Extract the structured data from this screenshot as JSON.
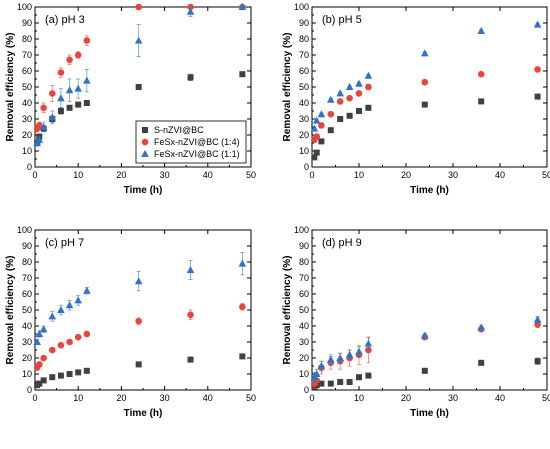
{
  "legend": {
    "entries": [
      {
        "label": "S-nZVI@BC",
        "marker": "square",
        "color": "#404040"
      },
      {
        "label": "FeSx-nZVI@BC (1:4)",
        "marker": "circle",
        "color": "#e8453c"
      },
      {
        "label": "FeSx-nZVI@BC (1:1)",
        "marker": "triangle",
        "color": "#2f72c8"
      }
    ]
  },
  "chart_data": [
    {
      "type": "scatter",
      "title": "(a) pH 3",
      "xlabel": "Time (h)",
      "ylabel": "Removal efficiency (%)",
      "xlim": [
        0,
        50
      ],
      "ylim": [
        0,
        100
      ],
      "xticks": [
        "0",
        "10",
        "20",
        "30",
        "40",
        "50"
      ],
      "yticks": [
        "0",
        "10",
        "20",
        "30",
        "40",
        "50",
        "60",
        "70",
        "80",
        "90",
        "100"
      ],
      "legend_position": "bottom-right",
      "series": [
        {
          "name": "S-nZVI@BC",
          "marker": "square",
          "color": "#404040",
          "x": [
            0.5,
            1,
            2,
            4,
            6,
            8,
            10,
            12,
            24,
            36,
            48
          ],
          "y": [
            15,
            19,
            24,
            30,
            35,
            37,
            39,
            40,
            50,
            56,
            58
          ],
          "err": [
            1,
            1.5,
            1.5,
            2,
            2,
            1.5,
            1.5,
            1.5,
            1.5,
            2,
            1
          ]
        },
        {
          "name": "FeSx-nZVI@BC (1:4)",
          "marker": "circle",
          "color": "#e8453c",
          "x": [
            0.5,
            1,
            2,
            4,
            6,
            8,
            10,
            12,
            24,
            36,
            48
          ],
          "y": [
            24,
            26,
            37,
            46,
            59,
            67,
            70,
            79,
            100,
            100,
            100
          ],
          "err": [
            2,
            2,
            3,
            5,
            3,
            3,
            2,
            3,
            1,
            1,
            1
          ]
        },
        {
          "name": "FeSx-nZVI@BC (1:1)",
          "marker": "triangle",
          "color": "#2f72c8",
          "x": [
            0.5,
            1,
            2,
            4,
            6,
            8,
            10,
            12,
            24,
            36,
            48
          ],
          "y": [
            15,
            17,
            25,
            31,
            43,
            48,
            49,
            54,
            79,
            97,
            100
          ],
          "err": [
            2,
            2,
            3,
            4,
            6,
            7,
            6,
            7,
            10,
            3,
            1
          ]
        }
      ]
    },
    {
      "type": "scatter",
      "title": "(b) pH 5",
      "xlabel": "Time (h)",
      "ylabel": "Removal efficiency (%)",
      "xlim": [
        0,
        50
      ],
      "ylim": [
        0,
        100
      ],
      "xticks": [
        "0",
        "10",
        "20",
        "30",
        "40",
        "50"
      ],
      "yticks": [
        "0",
        "10",
        "20",
        "30",
        "40",
        "50",
        "60",
        "70",
        "80",
        "90",
        "100"
      ],
      "series": [
        {
          "name": "S-nZVI@BC",
          "marker": "square",
          "color": "#404040",
          "x": [
            0.5,
            1,
            2,
            4,
            6,
            8,
            10,
            12,
            24,
            36,
            48
          ],
          "y": [
            6,
            9,
            16,
            23,
            30,
            32,
            35,
            37,
            39,
            41,
            44
          ],
          "err": [
            1,
            1,
            1,
            1.5,
            1.5,
            1,
            1,
            1,
            1,
            1.5,
            1.5
          ]
        },
        {
          "name": "FeSx-nZVI@BC (1:4)",
          "marker": "circle",
          "color": "#e8453c",
          "x": [
            0.5,
            1,
            2,
            4,
            6,
            8,
            10,
            12,
            24,
            36,
            48
          ],
          "y": [
            17,
            19,
            26,
            33,
            41,
            43,
            46,
            50,
            53,
            58,
            61
          ],
          "err": [
            1.5,
            1.5,
            1.5,
            1.5,
            1.5,
            1.5,
            1.5,
            1.5,
            1.5,
            1,
            1.5
          ]
        },
        {
          "name": "FeSx-nZVI@BC (1:1)",
          "marker": "triangle",
          "color": "#2f72c8",
          "x": [
            0.5,
            1,
            2,
            4,
            6,
            8,
            10,
            12,
            24,
            36,
            48
          ],
          "y": [
            24,
            29,
            33,
            42,
            46,
            50,
            52,
            57,
            71,
            85,
            89
          ],
          "err": [
            1,
            1,
            1,
            1,
            1,
            1,
            1,
            1,
            1,
            1,
            1
          ]
        }
      ]
    },
    {
      "type": "scatter",
      "title": "(c) pH 7",
      "xlabel": "Time (h)",
      "ylabel": "Removal efficiency (%)",
      "xlim": [
        0,
        50
      ],
      "ylim": [
        0,
        100
      ],
      "xticks": [
        "0",
        "10",
        "20",
        "30",
        "40",
        "50"
      ],
      "yticks": [
        "0",
        "10",
        "20",
        "30",
        "40",
        "50",
        "60",
        "70",
        "80",
        "90",
        "100"
      ],
      "series": [
        {
          "name": "S-nZVI@BC",
          "marker": "square",
          "color": "#404040",
          "x": [
            0.5,
            1,
            2,
            4,
            6,
            8,
            10,
            12,
            24,
            36,
            48
          ],
          "y": [
            3,
            4,
            6,
            8,
            9,
            10,
            11,
            12,
            16,
            19,
            21
          ],
          "err": [
            0.5,
            0.5,
            0.5,
            0.5,
            0.5,
            0.5,
            0.5,
            0.5,
            1,
            1,
            1
          ]
        },
        {
          "name": "FeSx-nZVI@BC (1:4)",
          "marker": "circle",
          "color": "#e8453c",
          "x": [
            0.5,
            1,
            2,
            4,
            6,
            8,
            10,
            12,
            24,
            36,
            48
          ],
          "y": [
            14,
            16,
            20,
            25,
            28,
            30,
            33,
            35,
            43,
            47,
            52
          ],
          "err": [
            1,
            1,
            1,
            1,
            1,
            1,
            1,
            1,
            2,
            3,
            2
          ]
        },
        {
          "name": "FeSx-nZVI@BC (1:1)",
          "marker": "triangle",
          "color": "#2f72c8",
          "x": [
            0.5,
            1,
            2,
            4,
            6,
            8,
            10,
            12,
            24,
            36,
            48
          ],
          "y": [
            30,
            35,
            38,
            46,
            50,
            53,
            56,
            62,
            68,
            75,
            79
          ],
          "err": [
            1.5,
            2,
            2,
            3,
            3,
            3,
            3,
            2,
            6,
            6,
            7
          ]
        }
      ]
    },
    {
      "type": "scatter",
      "title": "(d) pH 9",
      "xlabel": "Time (h)",
      "ylabel": "Removal efficiency (%)",
      "xlim": [
        0,
        50
      ],
      "ylim": [
        0,
        100
      ],
      "xticks": [
        "0",
        "10",
        "20",
        "30",
        "40",
        "50"
      ],
      "yticks": [
        "0",
        "10",
        "20",
        "30",
        "40",
        "50",
        "60",
        "70",
        "80",
        "90",
        "100"
      ],
      "series": [
        {
          "name": "S-nZVI@BC",
          "marker": "square",
          "color": "#404040",
          "x": [
            0.5,
            1,
            2,
            4,
            6,
            8,
            10,
            12,
            24,
            36,
            48
          ],
          "y": [
            2,
            3,
            4,
            4,
            5,
            5,
            8,
            9,
            12,
            17,
            18
          ],
          "err": [
            0.5,
            1,
            1,
            1,
            1.5,
            1.5,
            1.5,
            1,
            1,
            1.5,
            2
          ]
        },
        {
          "name": "FeSx-nZVI@BC (1:4)",
          "marker": "circle",
          "color": "#e8453c",
          "x": [
            0.5,
            1,
            2,
            4,
            6,
            8,
            10,
            12,
            24,
            36,
            48
          ],
          "y": [
            4,
            6,
            14,
            17,
            18,
            20,
            22,
            25,
            33,
            38,
            41
          ],
          "err": [
            3,
            3,
            4,
            4,
            5,
            5,
            6,
            8,
            1.5,
            1.5,
            2
          ]
        },
        {
          "name": "FeSx-nZVI@BC (1:1)",
          "marker": "triangle",
          "color": "#2f72c8",
          "x": [
            0.5,
            1,
            2,
            4,
            6,
            8,
            10,
            12,
            24,
            36,
            48
          ],
          "y": [
            8,
            10,
            15,
            19,
            20,
            22,
            24,
            29,
            34,
            39,
            44
          ],
          "err": [
            3,
            3,
            3,
            3,
            3,
            3,
            3,
            4,
            1.5,
            1.5,
            2
          ]
        }
      ]
    }
  ]
}
